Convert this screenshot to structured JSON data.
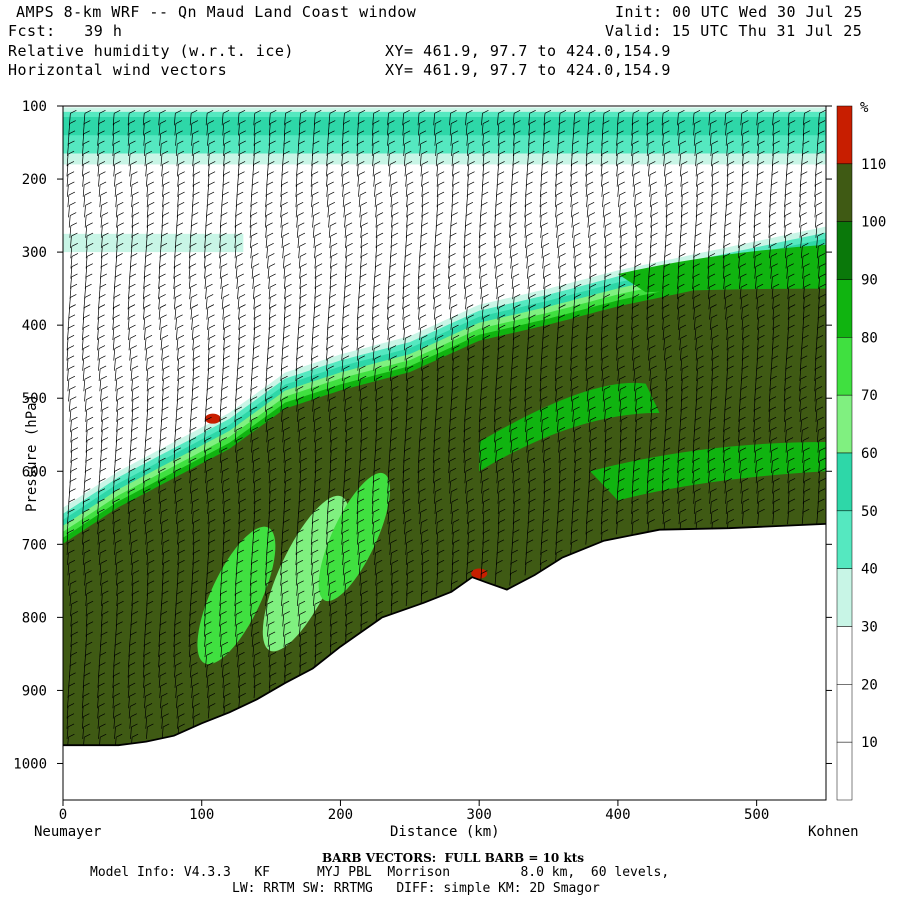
{
  "header": {
    "left_lines": [
      "AMPS 8-km WRF -- Qn Maud Land Coast window",
      "Fcst:   39 h",
      "Relative humidity (w.r.t. ice)",
      "Horizontal wind vectors"
    ],
    "xy_lines": [
      "XY= 461.9, 97.7 to 424.0,154.9",
      "XY= 461.9, 97.7 to 424.0,154.9"
    ],
    "init": "Init: 00 UTC Wed 30 Jul 25",
    "valid": "Valid: 15 UTC Thu 31 Jul 25"
  },
  "footer": {
    "barb_line": "BARB VECTORS:  FULL BARB = 10 kts",
    "model_line1": "Model Info: V4.3.3   KF      MYJ PBL  Morrison         8.0 km,  60 levels,",
    "model_line2": "LW: RRTM SW: RRTMG   DIFF: simple KM: 2D Smagor"
  },
  "chart_data": {
    "type": "heatmap",
    "title": "Relative humidity (w.r.t. ice)",
    "xlabel": "Distance (km)",
    "ylabel": "Pressure (hPa)",
    "xlim": [
      0,
      550
    ],
    "ylim": [
      1050,
      100
    ],
    "x_ticks": [
      0,
      100,
      200,
      300,
      400,
      500
    ],
    "y_ticks": [
      100,
      200,
      300,
      400,
      500,
      600,
      700,
      800,
      900,
      1000
    ],
    "x_endpoint_labels": [
      "Neumayer",
      "Kohnen"
    ],
    "colorbar": {
      "unit": "%",
      "levels": [
        10,
        20,
        30,
        40,
        50,
        60,
        70,
        80,
        90,
        100,
        110
      ],
      "colors": [
        "#ffffff",
        "#ffffff",
        "#ffffff",
        "#c8f5e6",
        "#55e8c0",
        "#2ed7a8",
        "#80f080",
        "#40e040",
        "#10b410",
        "#0a780a",
        "#3f5a14",
        "#c81e00"
      ]
    },
    "terrain": [
      [
        0,
        975
      ],
      [
        40,
        975
      ],
      [
        60,
        970
      ],
      [
        80,
        962
      ],
      [
        100,
        945
      ],
      [
        120,
        930
      ],
      [
        140,
        912
      ],
      [
        160,
        890
      ],
      [
        180,
        870
      ],
      [
        200,
        840
      ],
      [
        230,
        800
      ],
      [
        260,
        780
      ],
      [
        280,
        765
      ],
      [
        295,
        745
      ],
      [
        305,
        752
      ],
      [
        320,
        762
      ],
      [
        340,
        742
      ],
      [
        360,
        718
      ],
      [
        390,
        695
      ],
      [
        430,
        680
      ],
      [
        480,
        678
      ],
      [
        550,
        672
      ]
    ],
    "moist_top": [
      [
        0,
        650
      ],
      [
        40,
        600
      ],
      [
        80,
        560
      ],
      [
        120,
        520
      ],
      [
        160,
        465
      ],
      [
        200,
        440
      ],
      [
        250,
        415
      ],
      [
        300,
        372
      ],
      [
        350,
        350
      ],
      [
        400,
        325
      ],
      [
        450,
        305
      ],
      [
        500,
        285
      ],
      [
        550,
        265
      ]
    ],
    "upper_band": {
      "p_top": 110,
      "p_bottom": 170
    },
    "humid_patch": {
      "x": [
        0,
        130
      ],
      "p": [
        275,
        300
      ]
    },
    "saturated_spots": [
      [
        108,
        528
      ],
      [
        300,
        740
      ]
    ],
    "wind_barbs": "horizontal wind barbs at each column, full barb = 10 kts"
  }
}
